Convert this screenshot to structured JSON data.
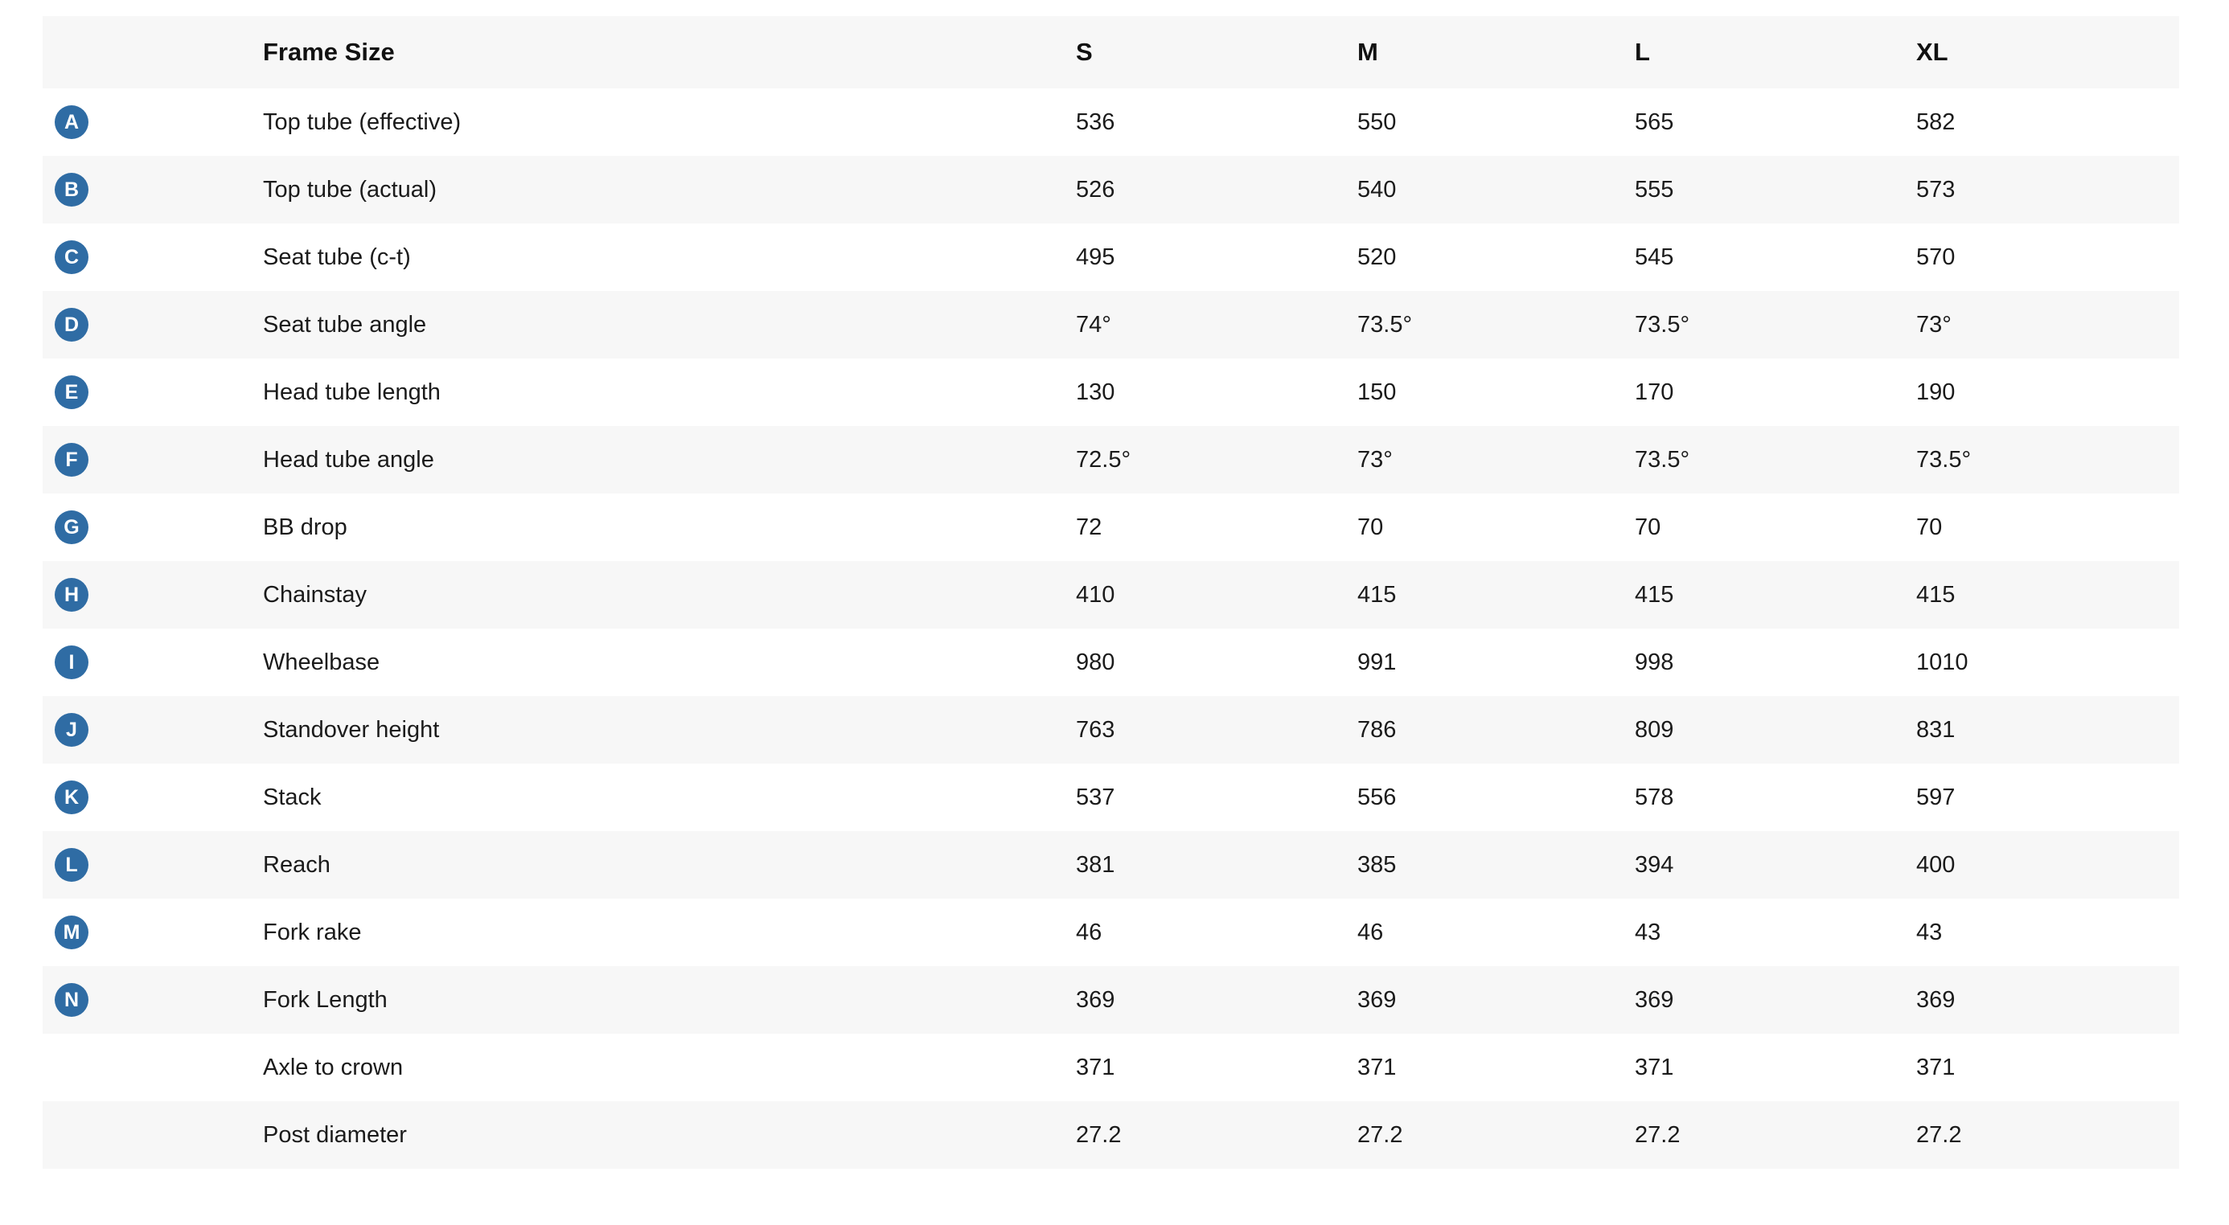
{
  "table": {
    "columns": [
      "Frame Size",
      "S",
      "M",
      "L",
      "XL"
    ],
    "rows": [
      {
        "badge": "A",
        "label": "Top tube (effective)",
        "values": [
          "536",
          "550",
          "565",
          "582"
        ]
      },
      {
        "badge": "B",
        "label": "Top tube (actual)",
        "values": [
          "526",
          "540",
          "555",
          "573"
        ]
      },
      {
        "badge": "C",
        "label": "Seat tube (c-t)",
        "values": [
          "495",
          "520",
          "545",
          "570"
        ]
      },
      {
        "badge": "D",
        "label": "Seat tube angle",
        "values": [
          "74°",
          "73.5°",
          "73.5°",
          "73°"
        ]
      },
      {
        "badge": "E",
        "label": "Head tube length",
        "values": [
          "130",
          "150",
          "170",
          "190"
        ]
      },
      {
        "badge": "F",
        "label": "Head tube angle",
        "values": [
          "72.5°",
          "73°",
          "73.5°",
          "73.5°"
        ]
      },
      {
        "badge": "G",
        "label": "BB drop",
        "values": [
          "72",
          "70",
          "70",
          "70"
        ]
      },
      {
        "badge": "H",
        "label": "Chainstay",
        "values": [
          "410",
          "415",
          "415",
          "415"
        ]
      },
      {
        "badge": "I",
        "label": "Wheelbase",
        "values": [
          "980",
          "991",
          "998",
          "1010"
        ]
      },
      {
        "badge": "J",
        "label": "Standover height",
        "values": [
          "763",
          "786",
          "809",
          "831"
        ]
      },
      {
        "badge": "K",
        "label": "Stack",
        "values": [
          "537",
          "556",
          "578",
          "597"
        ]
      },
      {
        "badge": "L",
        "label": "Reach",
        "values": [
          "381",
          "385",
          "394",
          "400"
        ]
      },
      {
        "badge": "M",
        "label": "Fork rake",
        "values": [
          "46",
          "46",
          "43",
          "43"
        ]
      },
      {
        "badge": "N",
        "label": "Fork Length",
        "values": [
          "369",
          "369",
          "369",
          "369"
        ]
      },
      {
        "badge": "",
        "label": "Axle to crown",
        "values": [
          "371",
          "371",
          "371",
          "371"
        ]
      },
      {
        "badge": "",
        "label": "Post diameter",
        "values": [
          "27.2",
          "27.2",
          "27.2",
          "27.2"
        ]
      }
    ],
    "colors": {
      "badge_blue": "#2f6ca4",
      "stripe_gray": "#f7f7f7",
      "text": "#1b1b1b"
    }
  }
}
